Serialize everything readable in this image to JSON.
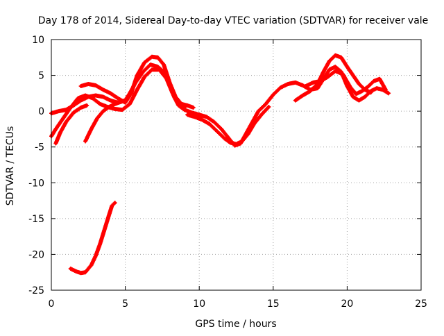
{
  "chart_data": {
    "type": "scatter",
    "title": "Day 178 of 2014, Sidereal Day-to-day VTEC variation (SDTVAR) for receiver vale",
    "xlabel": "GPS time / hours",
    "ylabel": "SDTVAR / TECUs",
    "xlim": [
      0,
      25
    ],
    "ylim": [
      -25,
      10
    ],
    "xticks": [
      0,
      5,
      10,
      15,
      20,
      25
    ],
    "yticks": [
      -25,
      -20,
      -15,
      -10,
      -5,
      0,
      5,
      10
    ],
    "grid": true,
    "point_color": "#ff0000",
    "series": [
      {
        "name": "main-arc-a",
        "points": [
          [
            0.0,
            -0.3
          ],
          [
            0.5,
            0.0
          ],
          [
            1.0,
            0.2
          ],
          [
            1.5,
            0.8
          ],
          [
            2.0,
            1.5
          ],
          [
            2.5,
            2.0
          ],
          [
            3.0,
            2.2
          ],
          [
            3.5,
            2.0
          ],
          [
            4.0,
            1.5
          ],
          [
            4.5,
            1.2
          ],
          [
            5.0,
            1.5
          ],
          [
            5.3,
            2.5
          ],
          [
            5.7,
            4.0
          ],
          [
            6.2,
            5.5
          ],
          [
            6.7,
            6.5
          ],
          [
            7.2,
            6.2
          ],
          [
            7.6,
            5.5
          ],
          [
            8.0,
            3.5
          ],
          [
            8.3,
            2.0
          ],
          [
            8.6,
            0.8
          ],
          [
            9.0,
            0.2
          ],
          [
            9.5,
            -0.2
          ],
          [
            10.0,
            -0.5
          ],
          [
            10.5,
            -0.8
          ],
          [
            11.0,
            -1.5
          ],
          [
            11.5,
            -2.5
          ],
          [
            12.0,
            -3.8
          ],
          [
            12.4,
            -4.8
          ],
          [
            12.8,
            -4.5
          ],
          [
            13.2,
            -3.0
          ],
          [
            13.6,
            -1.5
          ],
          [
            14.0,
            0.0
          ],
          [
            14.5,
            1.0
          ],
          [
            15.0,
            2.3
          ],
          [
            15.5,
            3.3
          ],
          [
            16.0,
            3.8
          ],
          [
            16.5,
            4.0
          ],
          [
            17.0,
            3.6
          ],
          [
            17.5,
            3.0
          ],
          [
            18.0,
            3.2
          ],
          [
            18.4,
            4.5
          ],
          [
            18.8,
            5.8
          ],
          [
            19.2,
            6.2
          ],
          [
            19.6,
            5.5
          ],
          [
            20.0,
            3.5
          ],
          [
            20.4,
            2.0
          ],
          [
            20.8,
            1.5
          ],
          [
            21.2,
            2.0
          ],
          [
            21.6,
            2.8
          ],
          [
            22.0,
            3.2
          ],
          [
            22.4,
            3.0
          ],
          [
            22.8,
            2.5
          ]
        ]
      },
      {
        "name": "main-arc-b",
        "points": [
          [
            2.0,
            3.5
          ],
          [
            2.5,
            3.8
          ],
          [
            3.0,
            3.6
          ],
          [
            3.5,
            3.0
          ],
          [
            4.0,
            2.5
          ],
          [
            4.5,
            1.8
          ],
          [
            5.0,
            1.2
          ],
          [
            5.4,
            2.5
          ],
          [
            5.8,
            5.0
          ],
          [
            6.3,
            6.8
          ],
          [
            6.8,
            7.6
          ],
          [
            7.2,
            7.5
          ],
          [
            7.6,
            6.5
          ],
          [
            8.0,
            4.0
          ],
          [
            8.4,
            2.0
          ],
          [
            8.8,
            1.0
          ],
          [
            9.2,
            0.8
          ],
          [
            9.6,
            0.5
          ]
        ]
      },
      {
        "name": "main-arc-c",
        "points": [
          [
            0.0,
            -3.5
          ],
          [
            0.3,
            -2.5
          ],
          [
            0.8,
            -1.0
          ],
          [
            1.3,
            0.5
          ],
          [
            1.8,
            1.8
          ],
          [
            2.3,
            2.2
          ],
          [
            2.8,
            1.8
          ],
          [
            3.3,
            1.0
          ],
          [
            3.8,
            0.6
          ],
          [
            4.3,
            0.3
          ],
          [
            4.8,
            0.2
          ],
          [
            5.3,
            1.0
          ],
          [
            5.8,
            3.0
          ],
          [
            6.3,
            4.8
          ],
          [
            6.8,
            5.8
          ],
          [
            7.3,
            5.8
          ],
          [
            7.8,
            4.5
          ],
          [
            8.2,
            2.5
          ],
          [
            8.6,
            1.0
          ],
          [
            9.0,
            0.5
          ]
        ]
      },
      {
        "name": "early-rise",
        "points": [
          [
            0.3,
            -4.5
          ],
          [
            0.6,
            -3.0
          ],
          [
            1.0,
            -1.5
          ],
          [
            1.5,
            -0.2
          ],
          [
            2.0,
            0.5
          ],
          [
            2.4,
            0.8
          ]
        ]
      },
      {
        "name": "mid-rise",
        "points": [
          [
            2.3,
            -4.2
          ],
          [
            2.7,
            -2.5
          ],
          [
            3.1,
            -1.0
          ],
          [
            3.5,
            0.0
          ],
          [
            3.9,
            0.6
          ],
          [
            4.3,
            1.0
          ],
          [
            4.7,
            1.3
          ],
          [
            5.1,
            1.6
          ]
        ]
      },
      {
        "name": "trough-arc",
        "points": [
          [
            9.2,
            -0.5
          ],
          [
            9.7,
            -0.8
          ],
          [
            10.2,
            -1.2
          ],
          [
            10.7,
            -1.8
          ],
          [
            11.2,
            -2.8
          ],
          [
            11.7,
            -3.8
          ],
          [
            12.1,
            -4.4
          ],
          [
            12.5,
            -4.6
          ],
          [
            12.9,
            -4.2
          ],
          [
            13.3,
            -3.2
          ],
          [
            13.7,
            -1.8
          ],
          [
            14.2,
            -0.5
          ],
          [
            14.7,
            0.6
          ]
        ]
      },
      {
        "name": "late-arc-a",
        "points": [
          [
            16.5,
            1.5
          ],
          [
            17.0,
            2.2
          ],
          [
            17.5,
            2.8
          ],
          [
            18.0,
            3.8
          ],
          [
            18.4,
            5.5
          ],
          [
            18.8,
            7.0
          ],
          [
            19.2,
            7.8
          ],
          [
            19.6,
            7.5
          ],
          [
            20.0,
            6.2
          ],
          [
            20.4,
            5.0
          ],
          [
            20.8,
            3.8
          ],
          [
            21.2,
            3.0
          ],
          [
            21.6,
            2.6
          ]
        ]
      },
      {
        "name": "late-arc-b",
        "points": [
          [
            17.2,
            3.5
          ],
          [
            17.7,
            4.0
          ],
          [
            18.2,
            4.2
          ],
          [
            18.7,
            4.8
          ],
          [
            19.2,
            5.6
          ],
          [
            19.7,
            5.2
          ],
          [
            20.2,
            3.4
          ],
          [
            20.6,
            2.4
          ],
          [
            21.0,
            2.8
          ],
          [
            21.4,
            3.4
          ],
          [
            21.8,
            4.2
          ],
          [
            22.2,
            4.5
          ],
          [
            22.6,
            3.0
          ]
        ]
      },
      {
        "name": "isolated-segment",
        "points": [
          [
            1.3,
            -22.0
          ],
          [
            1.7,
            -22.4
          ],
          [
            2.0,
            -22.6
          ],
          [
            2.3,
            -22.5
          ],
          [
            2.7,
            -21.5
          ],
          [
            3.0,
            -20.2
          ],
          [
            3.3,
            -18.5
          ],
          [
            3.6,
            -16.5
          ],
          [
            3.9,
            -14.5
          ],
          [
            4.1,
            -13.2
          ],
          [
            4.3,
            -12.8
          ]
        ]
      }
    ]
  }
}
